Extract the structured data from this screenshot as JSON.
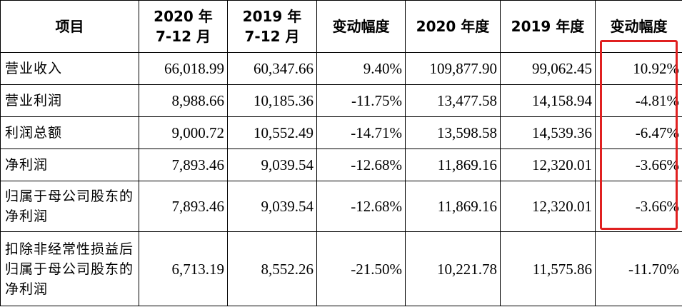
{
  "table": {
    "headers": [
      {
        "line1": "项目",
        "line2": ""
      },
      {
        "line1": "2020 年",
        "line2": "7-12 月"
      },
      {
        "line1": "2019 年",
        "line2": "7-12 月"
      },
      {
        "line1": "变动幅度",
        "line2": ""
      },
      {
        "line1": "2020 年度",
        "line2": ""
      },
      {
        "line1": "2019 年度",
        "line2": ""
      },
      {
        "line1": "变动幅度",
        "line2": ""
      }
    ],
    "rows": [
      {
        "item": "营业收入",
        "h2_2020": "66,018.99",
        "h2_2019": "60,347.66",
        "h2_change": "9.40%",
        "fy2020": "109,877.90",
        "fy2019": "99,062.45",
        "fy_change": "10.92%"
      },
      {
        "item": "营业利润",
        "h2_2020": "8,988.66",
        "h2_2019": "10,185.36",
        "h2_change": "-11.75%",
        "fy2020": "13,477.58",
        "fy2019": "14,158.94",
        "fy_change": "-4.81%"
      },
      {
        "item": "利润总额",
        "h2_2020": "9,000.72",
        "h2_2019": "10,552.49",
        "h2_change": "-14.71%",
        "fy2020": "13,598.58",
        "fy2019": "14,539.36",
        "fy_change": "-6.47%"
      },
      {
        "item": "净利润",
        "h2_2020": "7,893.46",
        "h2_2019": "9,039.54",
        "h2_change": "-12.68%",
        "fy2020": "11,869.16",
        "fy2019": "12,320.01",
        "fy_change": "-3.66%"
      },
      {
        "item": "归属于母公司股东的净利润",
        "h2_2020": "7,893.46",
        "h2_2019": "9,039.54",
        "h2_change": "-12.68%",
        "fy2020": "11,869.16",
        "fy2019": "12,320.01",
        "fy_change": "-3.66%"
      },
      {
        "item": "扣除非经常性损益后归属于母公司股东的净利润",
        "h2_2020": "6,713.19",
        "h2_2019": "8,552.26",
        "h2_change": "-21.50%",
        "fy2020": "10,221.78",
        "fy2019": "11,575.86",
        "fy_change": "-11.70%"
      }
    ]
  },
  "highlight_color": "#e02020"
}
